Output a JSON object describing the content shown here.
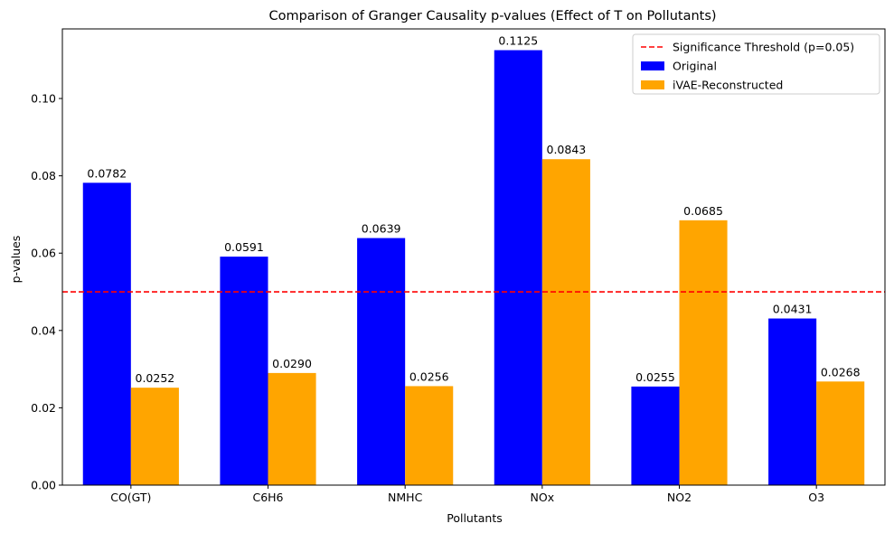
{
  "chart_data": {
    "type": "bar",
    "title": "Comparison of Granger Causality p-values (Effect of T on Pollutants)",
    "xlabel": "Pollutants",
    "ylabel": "p-values",
    "categories": [
      "CO(GT)",
      "C6H6",
      "NMHC",
      "NOx",
      "NO2",
      "O3"
    ],
    "series": [
      {
        "name": "Original",
        "color": "#0000ff",
        "values": [
          0.0782,
          0.0591,
          0.0639,
          0.1125,
          0.0255,
          0.0431
        ],
        "labels": [
          "0.0782",
          "0.0591",
          "0.0639",
          "0.1125",
          "0.0255",
          "0.0431"
        ]
      },
      {
        "name": "iVAE-Reconstructed",
        "color": "#ffa500",
        "values": [
          0.0252,
          0.029,
          0.0256,
          0.0843,
          0.0685,
          0.0268
        ],
        "labels": [
          "0.0252",
          "0.0290",
          "0.0256",
          "0.0843",
          "0.0685",
          "0.0268"
        ]
      }
    ],
    "ylim": [
      0,
      0.118
    ],
    "yticks": [
      0,
      0.02,
      0.04,
      0.06,
      0.08,
      0.1
    ],
    "ytick_labels": [
      "0.00",
      "0.02",
      "0.04",
      "0.06",
      "0.08",
      "0.10"
    ],
    "threshold": {
      "value": 0.05,
      "label": "Significance Threshold (p=0.05)",
      "color": "#ff0000"
    },
    "legend_position": "top-right",
    "grid": false
  }
}
